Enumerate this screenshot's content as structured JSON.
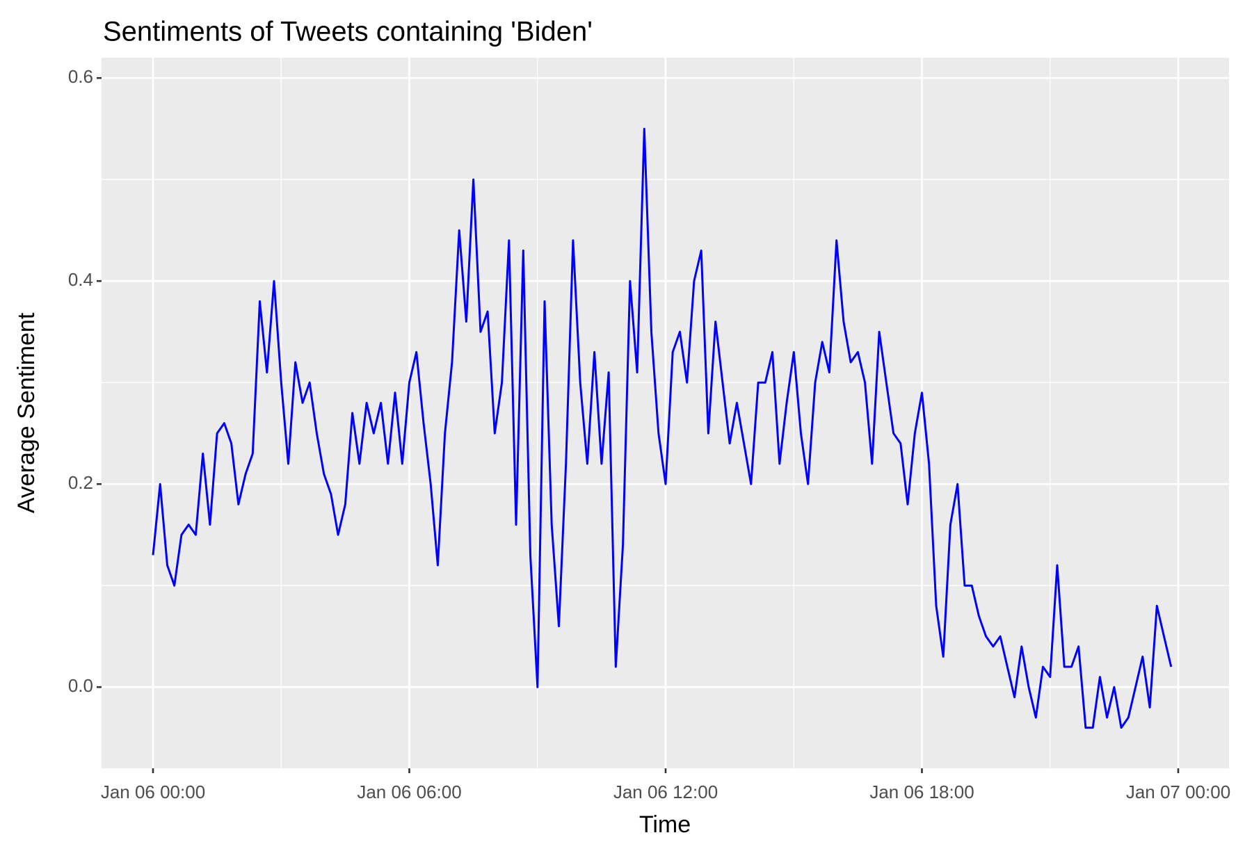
{
  "chart_data": {
    "type": "line",
    "title": "Sentiments of Tweets containing 'Biden'",
    "x_label": "Time",
    "y_label": "Average Sentiment",
    "x": [
      "Jan 06 00:00",
      "Jan 06 00:10",
      "Jan 06 00:20",
      "Jan 06 00:30",
      "Jan 06 00:40",
      "Jan 06 00:50",
      "Jan 06 01:00",
      "Jan 06 01:10",
      "Jan 06 01:20",
      "Jan 06 01:30",
      "Jan 06 01:40",
      "Jan 06 01:50",
      "Jan 06 02:00",
      "Jan 06 02:10",
      "Jan 06 02:20",
      "Jan 06 02:30",
      "Jan 06 02:40",
      "Jan 06 02:50",
      "Jan 06 03:00",
      "Jan 06 03:10",
      "Jan 06 03:20",
      "Jan 06 03:30",
      "Jan 06 03:40",
      "Jan 06 03:50",
      "Jan 06 04:00",
      "Jan 06 04:10",
      "Jan 06 04:20",
      "Jan 06 04:30",
      "Jan 06 04:40",
      "Jan 06 04:50",
      "Jan 06 05:00",
      "Jan 06 05:10",
      "Jan 06 05:20",
      "Jan 06 05:30",
      "Jan 06 05:40",
      "Jan 06 05:50",
      "Jan 06 06:00",
      "Jan 06 06:10",
      "Jan 06 06:20",
      "Jan 06 06:30",
      "Jan 06 06:40",
      "Jan 06 06:50",
      "Jan 06 07:00",
      "Jan 06 07:10",
      "Jan 06 07:20",
      "Jan 06 07:30",
      "Jan 06 07:40",
      "Jan 06 07:50",
      "Jan 06 08:00",
      "Jan 06 08:10",
      "Jan 06 08:20",
      "Jan 06 08:30",
      "Jan 06 08:40",
      "Jan 06 08:50",
      "Jan 06 09:00",
      "Jan 06 09:10",
      "Jan 06 09:20",
      "Jan 06 09:30",
      "Jan 06 09:40",
      "Jan 06 09:50",
      "Jan 06 10:00",
      "Jan 06 10:10",
      "Jan 06 10:20",
      "Jan 06 10:30",
      "Jan 06 10:40",
      "Jan 06 10:50",
      "Jan 06 11:00",
      "Jan 06 11:10",
      "Jan 06 11:20",
      "Jan 06 11:30",
      "Jan 06 11:40",
      "Jan 06 11:50",
      "Jan 06 12:00",
      "Jan 06 12:10",
      "Jan 06 12:20",
      "Jan 06 12:30",
      "Jan 06 12:40",
      "Jan 06 12:50",
      "Jan 06 13:00",
      "Jan 06 13:10",
      "Jan 06 13:20",
      "Jan 06 13:30",
      "Jan 06 13:40",
      "Jan 06 13:50",
      "Jan 06 14:00",
      "Jan 06 14:10",
      "Jan 06 14:20",
      "Jan 06 14:30",
      "Jan 06 14:40",
      "Jan 06 14:50",
      "Jan 06 15:00",
      "Jan 06 15:10",
      "Jan 06 15:20",
      "Jan 06 15:30",
      "Jan 06 15:40",
      "Jan 06 15:50",
      "Jan 06 16:00",
      "Jan 06 16:10",
      "Jan 06 16:20",
      "Jan 06 16:30",
      "Jan 06 16:40",
      "Jan 06 16:50",
      "Jan 06 17:00",
      "Jan 06 17:10",
      "Jan 06 17:20",
      "Jan 06 17:30",
      "Jan 06 17:40",
      "Jan 06 17:50",
      "Jan 06 18:00",
      "Jan 06 18:10",
      "Jan 06 18:20",
      "Jan 06 18:30",
      "Jan 06 18:40",
      "Jan 06 18:50",
      "Jan 06 19:00",
      "Jan 06 19:10",
      "Jan 06 19:20",
      "Jan 06 19:30",
      "Jan 06 19:40",
      "Jan 06 19:50",
      "Jan 06 20:00",
      "Jan 06 20:10",
      "Jan 06 20:20",
      "Jan 06 20:30",
      "Jan 06 20:40",
      "Jan 06 20:50",
      "Jan 06 21:00",
      "Jan 06 21:10",
      "Jan 06 21:20",
      "Jan 06 21:30",
      "Jan 06 21:40",
      "Jan 06 21:50",
      "Jan 06 22:00",
      "Jan 06 22:10",
      "Jan 06 22:20",
      "Jan 06 22:30",
      "Jan 06 22:40",
      "Jan 06 22:50",
      "Jan 06 23:00",
      "Jan 06 23:10",
      "Jan 06 23:20",
      "Jan 06 23:30",
      "Jan 06 23:40",
      "Jan 06 23:50"
    ],
    "series": [
      {
        "name": "Average Sentiment",
        "color": "#0000ff",
        "values": [
          0.13,
          0.2,
          0.12,
          0.1,
          0.15,
          0.16,
          0.15,
          0.23,
          0.16,
          0.25,
          0.26,
          0.24,
          0.18,
          0.21,
          0.23,
          0.38,
          0.31,
          0.4,
          0.3,
          0.22,
          0.32,
          0.28,
          0.3,
          0.25,
          0.21,
          0.19,
          0.15,
          0.18,
          0.27,
          0.22,
          0.28,
          0.25,
          0.28,
          0.22,
          0.29,
          0.22,
          0.3,
          0.33,
          0.26,
          0.2,
          0.12,
          0.25,
          0.32,
          0.45,
          0.36,
          0.5,
          0.35,
          0.37,
          0.25,
          0.3,
          0.44,
          0.16,
          0.43,
          0.13,
          0.0,
          0.38,
          0.16,
          0.06,
          0.22,
          0.44,
          0.3,
          0.22,
          0.33,
          0.22,
          0.31,
          0.02,
          0.14,
          0.4,
          0.31,
          0.55,
          0.35,
          0.25,
          0.2,
          0.33,
          0.35,
          0.3,
          0.4,
          0.43,
          0.25,
          0.36,
          0.3,
          0.24,
          0.28,
          0.24,
          0.2,
          0.3,
          0.3,
          0.33,
          0.22,
          0.28,
          0.33,
          0.25,
          0.2,
          0.3,
          0.34,
          0.31,
          0.44,
          0.36,
          0.32,
          0.33,
          0.3,
          0.22,
          0.35,
          0.3,
          0.25,
          0.24,
          0.18,
          0.25,
          0.29,
          0.22,
          0.08,
          0.03,
          0.16,
          0.2,
          0.1,
          0.1,
          0.07,
          0.05,
          0.04,
          0.05,
          0.02,
          -0.01,
          0.04,
          0.0,
          -0.03,
          0.02,
          0.01,
          0.12,
          0.02,
          0.02,
          0.04,
          -0.04,
          -0.04,
          0.01,
          -0.03,
          0.0,
          -0.04,
          -0.03,
          0.0,
          0.03,
          -0.02,
          0.08,
          0.05,
          0.02
        ]
      }
    ],
    "xlim": [
      "Jan 06 00:00",
      "Jan 07 00:00"
    ],
    "xticks": [
      "Jan 06 00:00",
      "Jan 06 06:00",
      "Jan 06 12:00",
      "Jan 06 18:00",
      "Jan 07 00:00"
    ],
    "ylim": [
      -0.08,
      0.62
    ],
    "yticks": [
      {
        "value": 0,
        "label": "0.0"
      },
      0.2,
      0.4,
      0.6
    ],
    "grid": true
  }
}
